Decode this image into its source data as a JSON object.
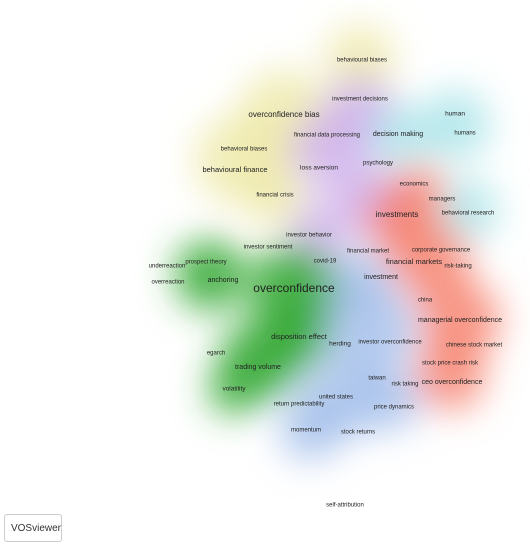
{
  "nodes": [
    "behavioural biases",
    "investment decisions",
    "overconfidence bias",
    "human",
    "humans",
    "financial data processing",
    "decision making",
    "behavioral biases",
    "behavioural finance",
    "loss aversion",
    "psychology",
    "economics",
    "managers",
    "financial crisis",
    "investments",
    "behavioral research",
    "investor behavior",
    "investor sentiment",
    "financial market",
    "corporate governance",
    "covid-19",
    "financial markets",
    "risk-taking",
    "prospect theory",
    "underreaction",
    "overreaction",
    "anchoring",
    "investment",
    "overconfidence",
    "china",
    "managerial overconfidence",
    "disposition effect",
    "herding",
    "investor overconfidence",
    "chinese stock market",
    "egarch",
    "trading volume",
    "stock price crash risk",
    "taiwan",
    "ceo overconfidence",
    "risk taking",
    "volatility",
    "united states",
    "return predictability",
    "price dynamics",
    "momentum",
    "stock returns",
    "self-attribution"
  ],
  "logo": "VOSviewer"
}
